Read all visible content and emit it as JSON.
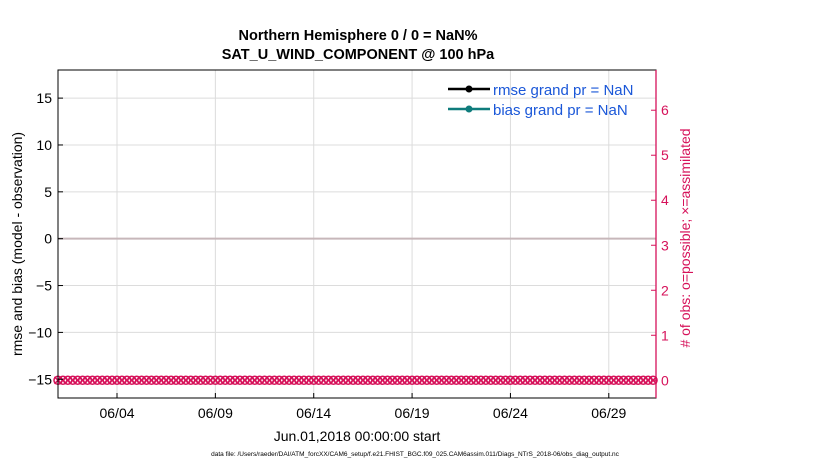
{
  "chart_data": {
    "type": "line",
    "title": "Northern Hemisphere 0 / 0 = NaN%",
    "subtitle": "SAT_U_WIND_COMPONENT @ 100 hPa",
    "ylabel": "rmse and bias (model - observation)",
    "y2label": "# of obs: o=possible; ×=assimilated",
    "xlabel": "Jun.01,2018 00:00:00 start",
    "ylim": [
      -17,
      18
    ],
    "y2lim": [
      -0.3936,
      6.8935
    ],
    "xlim": [
      0.5,
      30.9
    ],
    "yticks": [
      -15,
      -10,
      -5,
      0,
      5,
      10,
      15
    ],
    "yticklabels": [
      "−15",
      "−10",
      "−5",
      "0",
      "5",
      "10",
      "15"
    ],
    "y2ticks": [
      0,
      1,
      2,
      3,
      4,
      5,
      6
    ],
    "xticks": [
      3.5,
      8.5,
      13.5,
      18.5,
      23.5,
      28.5
    ],
    "xticklabels": [
      "06/04",
      "06/09",
      "06/14",
      "06/19",
      "06/24",
      "06/29"
    ],
    "grid": true,
    "legend_position": "top-right",
    "zero_line_color": "#c7b7ba",
    "series": [
      {
        "name": "rmse grand pr = NaN",
        "color": "#000000",
        "values": []
      },
      {
        "name": "bias grand pr = NaN",
        "color": "#0f7c7c",
        "values": []
      },
      {
        "name": "",
        "color": "#d6125a",
        "axis": "right",
        "x": [
          0.5,
          0.75,
          1.0,
          1.25,
          1.5,
          1.75,
          2.0,
          2.25,
          2.5,
          2.75,
          3.0,
          3.25,
          3.5,
          3.75,
          4.0,
          4.25,
          4.5,
          4.75,
          5.0,
          5.25,
          5.5,
          5.75,
          6.0,
          6.25,
          6.5,
          6.75,
          7.0,
          7.25,
          7.5,
          7.75,
          8.0,
          8.25,
          8.5,
          8.75,
          9.0,
          9.25,
          9.5,
          9.75,
          10.0,
          10.25,
          10.5,
          10.75,
          11.0,
          11.25,
          11.5,
          11.75,
          12.0,
          12.25,
          12.5,
          12.75,
          13.0,
          13.25,
          13.5,
          13.75,
          14.0,
          14.25,
          14.5,
          14.75,
          15.0,
          15.25,
          15.5,
          15.75,
          16.0,
          16.25,
          16.5,
          16.75,
          17.0,
          17.25,
          17.5,
          17.75,
          18.0,
          18.25,
          18.5,
          18.75,
          19.0,
          19.25,
          19.5,
          19.75,
          20.0,
          20.25,
          20.5,
          20.75,
          21.0,
          21.25,
          21.5,
          21.75,
          22.0,
          22.25,
          22.5,
          22.75,
          23.0,
          23.25,
          23.5,
          23.75,
          24.0,
          24.25,
          24.5,
          24.75,
          25.0,
          25.25,
          25.5,
          25.75,
          26.0,
          26.25,
          26.5,
          26.75,
          27.0,
          27.25,
          27.5,
          27.75,
          28.0,
          28.25,
          28.5,
          28.75,
          29.0,
          29.25,
          29.5,
          29.75,
          30.0,
          30.25,
          30.5,
          30.75
        ],
        "value": 0
      }
    ]
  },
  "footer": "data file: /Users/raeder/DAI/ATM_forcXX/CAM6_setup/f.e21.FHIST_BGC.f09_025.CAM6assim.011/Diags_NTrS_2018-06/obs_diag_output.nc",
  "colors": {
    "axes": "#000000",
    "right_axis": "#d6125a",
    "legend_text": "#1a57d8",
    "grid": "#dcdcdc"
  }
}
